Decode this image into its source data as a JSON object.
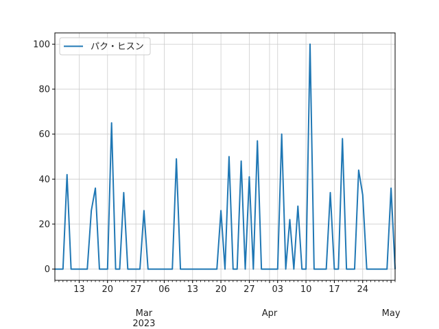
{
  "chart_data": {
    "type": "line",
    "title": "",
    "xlabel": "",
    "ylabel": "",
    "x_range": [
      "2023-02-07",
      "2023-05-02"
    ],
    "ylim": [
      -5,
      105
    ],
    "y_ticks": [
      0,
      20,
      40,
      60,
      80,
      100
    ],
    "x_ticks": [
      {
        "date": "2023-02-13",
        "label": "13"
      },
      {
        "date": "2023-02-20",
        "label": "20"
      },
      {
        "date": "2023-02-27",
        "label": "27"
      },
      {
        "date": "2023-03-01",
        "label": "Mar",
        "label2": "2023"
      },
      {
        "date": "2023-03-06",
        "label": "06"
      },
      {
        "date": "2023-03-13",
        "label": "13"
      },
      {
        "date": "2023-03-20",
        "label": "20"
      },
      {
        "date": "2023-03-27",
        "label": "27"
      },
      {
        "date": "2023-04-01",
        "label": "Apr"
      },
      {
        "date": "2023-04-03",
        "label": "03"
      },
      {
        "date": "2023-04-10",
        "label": "10"
      },
      {
        "date": "2023-04-17",
        "label": "17"
      },
      {
        "date": "2023-04-24",
        "label": "24"
      },
      {
        "date": "2023-05-01",
        "label": "May"
      }
    ],
    "grid": true,
    "legend_position": "top-left",
    "series": [
      {
        "name": "パク・ヒスン",
        "color": "#1f77b4",
        "x": [
          "2023-02-07",
          "2023-02-08",
          "2023-02-09",
          "2023-02-10",
          "2023-02-11",
          "2023-02-12",
          "2023-02-13",
          "2023-02-14",
          "2023-02-15",
          "2023-02-16",
          "2023-02-17",
          "2023-02-18",
          "2023-02-19",
          "2023-02-20",
          "2023-02-21",
          "2023-02-22",
          "2023-02-23",
          "2023-02-24",
          "2023-02-25",
          "2023-02-26",
          "2023-02-27",
          "2023-02-28",
          "2023-03-01",
          "2023-03-02",
          "2023-03-03",
          "2023-03-04",
          "2023-03-05",
          "2023-03-06",
          "2023-03-07",
          "2023-03-08",
          "2023-03-09",
          "2023-03-10",
          "2023-03-11",
          "2023-03-12",
          "2023-03-13",
          "2023-03-14",
          "2023-03-15",
          "2023-03-16",
          "2023-03-17",
          "2023-03-18",
          "2023-03-19",
          "2023-03-20",
          "2023-03-21",
          "2023-03-22",
          "2023-03-23",
          "2023-03-24",
          "2023-03-25",
          "2023-03-26",
          "2023-03-27",
          "2023-03-28",
          "2023-03-29",
          "2023-03-30",
          "2023-03-31",
          "2023-04-01",
          "2023-04-02",
          "2023-04-03",
          "2023-04-04",
          "2023-04-05",
          "2023-04-06",
          "2023-04-07",
          "2023-04-08",
          "2023-04-09",
          "2023-04-10",
          "2023-04-11",
          "2023-04-12",
          "2023-04-13",
          "2023-04-14",
          "2023-04-15",
          "2023-04-16",
          "2023-04-17",
          "2023-04-18",
          "2023-04-19",
          "2023-04-20",
          "2023-04-21",
          "2023-04-22",
          "2023-04-23",
          "2023-04-24",
          "2023-04-25",
          "2023-04-26",
          "2023-04-27",
          "2023-04-28",
          "2023-04-29",
          "2023-04-30",
          "2023-05-01",
          "2023-05-02"
        ],
        "values": [
          0,
          0,
          0,
          42,
          0,
          0,
          0,
          0,
          0,
          26,
          36,
          0,
          0,
          0,
          65,
          0,
          0,
          34,
          0,
          0,
          0,
          0,
          26,
          0,
          0,
          0,
          0,
          0,
          0,
          0,
          49,
          0,
          0,
          0,
          0,
          0,
          0,
          0,
          0,
          0,
          0,
          26,
          0,
          50,
          0,
          0,
          48,
          0,
          41,
          0,
          57,
          0,
          0,
          0,
          0,
          0,
          60,
          0,
          22,
          0,
          28,
          0,
          0,
          100,
          0,
          0,
          0,
          0,
          34,
          0,
          0,
          58,
          0,
          0,
          0,
          44,
          33,
          0,
          0,
          0,
          0,
          0,
          0,
          36,
          0
        ]
      }
    ]
  }
}
